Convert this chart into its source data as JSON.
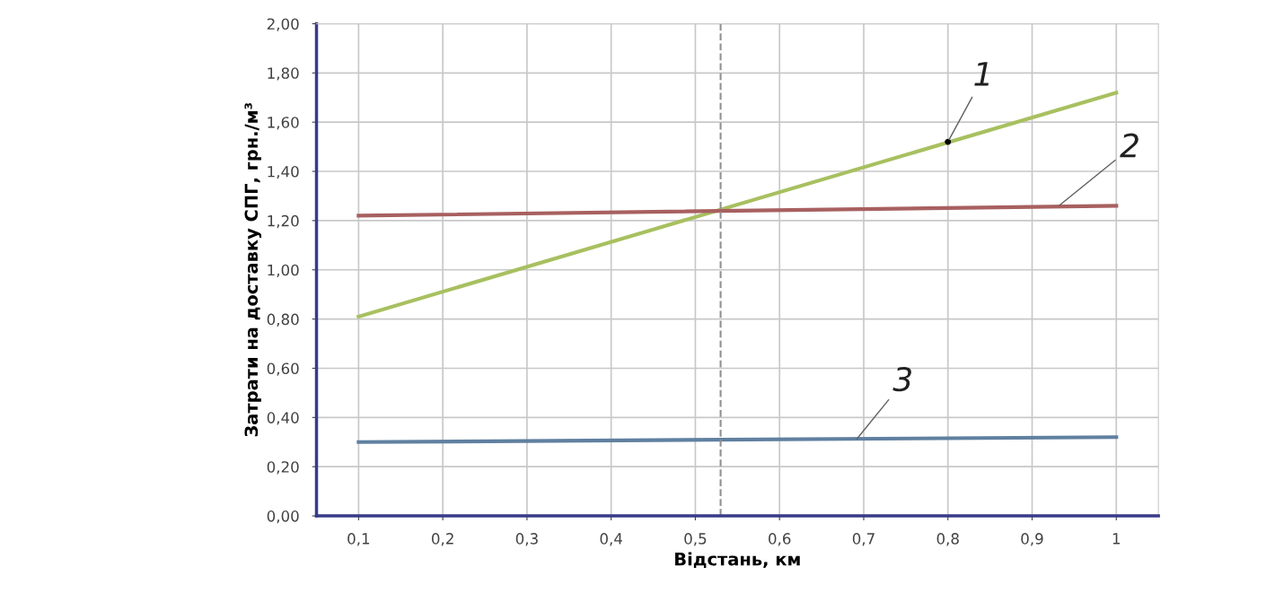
{
  "chart_data": {
    "type": "line",
    "xlabel": "Відстань, км",
    "ylabel": "Затрати на доставку СПГ, грн./м³",
    "x": [
      0.1,
      1
    ],
    "series": [
      {
        "color": "#a8c060",
        "values": [
          0.81,
          1.72
        ]
      },
      {
        "color": "#a86060",
        "values": [
          1.22,
          1.26
        ]
      },
      {
        "color": "#6080a0",
        "values": [
          0.3,
          0.32
        ]
      }
    ],
    "annotations": [
      {
        "text": "1",
        "x": 0.8,
        "y": 1.52
      },
      {
        "text": "2",
        "x": 0.93,
        "y": 1.255
      },
      {
        "text": "3",
        "x": 0.69,
        "y": 0.305
      }
    ],
    "ref_lines": [
      {
        "axis": "x",
        "value": 0.53,
        "color": "#909090",
        "line_style": "dashed"
      }
    ],
    "xlim": [
      0.05,
      1.05
    ],
    "xticks": [
      {
        "value": 0.1,
        "label": "0,1"
      },
      {
        "value": 0.2,
        "label": "0,2"
      },
      {
        "value": 0.3,
        "label": "0,3"
      },
      {
        "value": 0.4,
        "label": "0,4"
      },
      {
        "value": 0.5,
        "label": "0,5"
      },
      {
        "value": 0.6,
        "label": "0,6"
      },
      {
        "value": 0.7,
        "label": "0,7"
      },
      {
        "value": 0.8,
        "label": "0,8"
      },
      {
        "value": 0.9,
        "label": "0,9"
      },
      {
        "value": 1,
        "label": "1"
      }
    ],
    "ylim": [
      0,
      2
    ],
    "yticks": [
      {
        "value": 0,
        "label": "0,00"
      },
      {
        "value": 0.2,
        "label": "0,20"
      },
      {
        "value": 0.4,
        "label": "0,40"
      },
      {
        "value": 0.6,
        "label": "0,60"
      },
      {
        "value": 0.8,
        "label": "0,80"
      },
      {
        "value": 1.0,
        "label": "1,00"
      },
      {
        "value": 1.2,
        "label": "1,20"
      },
      {
        "value": 1.4,
        "label": "1,40"
      },
      {
        "value": 1.6,
        "label": "1,60"
      },
      {
        "value": 1.8,
        "label": "1,80"
      },
      {
        "value": 2.0,
        "label": "2,00"
      }
    ],
    "grid": true,
    "marker": "none",
    "line_style": "solid"
  }
}
